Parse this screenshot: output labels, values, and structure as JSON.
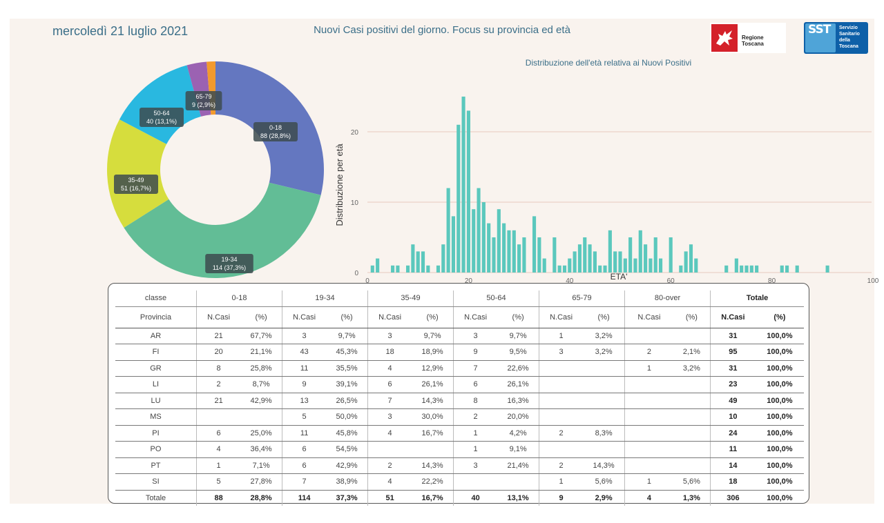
{
  "header": {
    "date": "mercoledì 21 luglio 2021",
    "title": "Nuovi Casi positivi del giorno. Focus su provincia ed età",
    "logo_rt_text": "Regione Toscana",
    "logo_sst_mark": "SST",
    "logo_sst_lines": [
      "Servizio",
      "Sanitario",
      "della",
      "Toscana"
    ]
  },
  "chart_data": [
    {
      "type": "pie",
      "variant": "donut",
      "categories": [
        "0-18",
        "19-34",
        "35-49",
        "50-64",
        "65-79",
        "80-over"
      ],
      "values": [
        88,
        114,
        51,
        40,
        9,
        4
      ],
      "labels": [
        "88 (28,8%)",
        "114 (37,3%)",
        "51 (16,7%)",
        "40 (13,1%)",
        "9 (2,9%)",
        ""
      ],
      "colors": [
        "#6477c0",
        "#62bd96",
        "#d6dd3d",
        "#29b8e0",
        "#9b62b2",
        "#f29a2e"
      ]
    },
    {
      "type": "bar",
      "title": "Distribuzione dell'età relativa ai Nuovi Positivi",
      "xlabel": "ETA'",
      "ylabel": "Distribuzione per età",
      "xlim": [
        0,
        100
      ],
      "ylim": [
        0,
        25
      ],
      "xticks": [
        0,
        20,
        40,
        60,
        80,
        100
      ],
      "yticks": [
        0,
        10,
        20
      ],
      "color": "#5bc8bd",
      "x": [
        1,
        2,
        5,
        6,
        8,
        9,
        10,
        11,
        12,
        14,
        15,
        16,
        17,
        18,
        19,
        20,
        21,
        22,
        23,
        24,
        25,
        26,
        27,
        28,
        29,
        30,
        31,
        33,
        34,
        35,
        37,
        38,
        39,
        40,
        41,
        42,
        43,
        44,
        45,
        46,
        47,
        48,
        49,
        50,
        51,
        52,
        53,
        54,
        55,
        56,
        57,
        58,
        60,
        62,
        63,
        64,
        65,
        71,
        73,
        74,
        75,
        76,
        77,
        82,
        83,
        85,
        91
      ],
      "values": [
        1,
        2,
        1,
        1,
        1,
        4,
        3,
        3,
        1,
        1,
        4,
        12,
        8,
        21,
        25,
        23,
        9,
        12,
        10,
        7,
        5,
        9,
        7,
        6,
        6,
        4,
        5,
        8,
        5,
        2,
        5,
        1,
        1,
        2,
        3,
        4,
        5,
        4,
        3,
        1,
        1,
        6,
        3,
        3,
        2,
        5,
        2,
        6,
        4,
        2,
        5,
        2,
        5,
        1,
        3,
        4,
        2,
        1,
        2,
        1,
        1,
        1,
        1,
        1,
        1,
        1,
        1
      ]
    },
    {
      "type": "table",
      "group_header_label": "classe",
      "groups": [
        "0-18",
        "19-34",
        "35-49",
        "50-64",
        "65-79",
        "80-over",
        "Totale"
      ],
      "row_header_label": "Provincia",
      "subheaders": [
        "N.Casi",
        "(%)"
      ],
      "rows": [
        {
          "name": "AR",
          "cells": [
            "21",
            "67,7%",
            "3",
            "9,7%",
            "3",
            "9,7%",
            "3",
            "9,7%",
            "1",
            "3,2%",
            "",
            "",
            "31",
            "100,0%"
          ]
        },
        {
          "name": "FI",
          "cells": [
            "20",
            "21,1%",
            "43",
            "45,3%",
            "18",
            "18,9%",
            "9",
            "9,5%",
            "3",
            "3,2%",
            "2",
            "2,1%",
            "95",
            "100,0%"
          ]
        },
        {
          "name": "GR",
          "cells": [
            "8",
            "25,8%",
            "11",
            "35,5%",
            "4",
            "12,9%",
            "7",
            "22,6%",
            "",
            "",
            "1",
            "3,2%",
            "31",
            "100,0%"
          ]
        },
        {
          "name": "LI",
          "cells": [
            "2",
            "8,7%",
            "9",
            "39,1%",
            "6",
            "26,1%",
            "6",
            "26,1%",
            "",
            "",
            "",
            "",
            "23",
            "100,0%"
          ]
        },
        {
          "name": "LU",
          "cells": [
            "21",
            "42,9%",
            "13",
            "26,5%",
            "7",
            "14,3%",
            "8",
            "16,3%",
            "",
            "",
            "",
            "",
            "49",
            "100,0%"
          ]
        },
        {
          "name": "MS",
          "cells": [
            "",
            "",
            "5",
            "50,0%",
            "3",
            "30,0%",
            "2",
            "20,0%",
            "",
            "",
            "",
            "",
            "10",
            "100,0%"
          ]
        },
        {
          "name": "PI",
          "cells": [
            "6",
            "25,0%",
            "11",
            "45,8%",
            "4",
            "16,7%",
            "1",
            "4,2%",
            "2",
            "8,3%",
            "",
            "",
            "24",
            "100,0%"
          ]
        },
        {
          "name": "PO",
          "cells": [
            "4",
            "36,4%",
            "6",
            "54,5%",
            "",
            "",
            "1",
            "9,1%",
            "",
            "",
            "",
            "",
            "11",
            "100,0%"
          ]
        },
        {
          "name": "PT",
          "cells": [
            "1",
            "7,1%",
            "6",
            "42,9%",
            "2",
            "14,3%",
            "3",
            "21,4%",
            "2",
            "14,3%",
            "",
            "",
            "14",
            "100,0%"
          ]
        },
        {
          "name": "SI",
          "cells": [
            "5",
            "27,8%",
            "7",
            "38,9%",
            "4",
            "22,2%",
            "",
            "",
            "1",
            "5,6%",
            "1",
            "5,6%",
            "18",
            "100,0%"
          ]
        },
        {
          "name": "Totale",
          "cells": [
            "88",
            "28,8%",
            "114",
            "37,3%",
            "51",
            "16,7%",
            "40",
            "13,1%",
            "9",
            "2,9%",
            "4",
            "1,3%",
            "306",
            "100,0%"
          ]
        }
      ]
    }
  ]
}
